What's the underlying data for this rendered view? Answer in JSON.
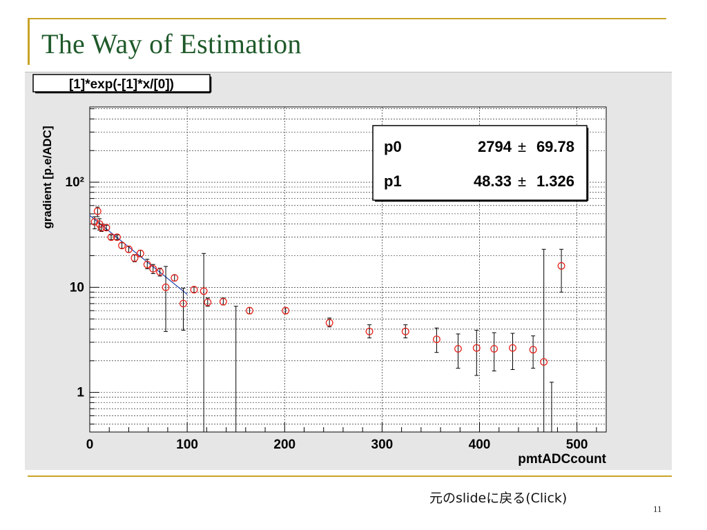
{
  "slide": {
    "title": "The Way of Estimation",
    "back_link": "元のslideに戻る(Click)",
    "page_number": "11"
  },
  "colors": {
    "accent": "#c9a227",
    "title": "#1f5a2a",
    "marker": "#e8231c",
    "fit_line": "#1f3fb0",
    "canvas": "#e6e6e6"
  },
  "chart_data": {
    "type": "scatter",
    "title": "[1]*exp(-[1]*x/[0])",
    "xlabel": "pmtADCcount",
    "ylabel": "gradient [p.e/ADC]",
    "xlim": [
      0,
      530
    ],
    "ylim": [
      0.42,
      520
    ],
    "y_scale": "log",
    "grid": true,
    "x_ticks": [
      {
        "value": 0,
        "label": "0"
      },
      {
        "value": 100,
        "label": "100"
      },
      {
        "value": 200,
        "label": "200"
      },
      {
        "value": 300,
        "label": "300"
      },
      {
        "value": 400,
        "label": "400"
      },
      {
        "value": 500,
        "label": "500"
      }
    ],
    "y_ticks": [
      {
        "value": 1,
        "label": "1"
      },
      {
        "value": 10,
        "label": "10"
      },
      {
        "value": 100,
        "label": "10²"
      }
    ],
    "fit": {
      "function": "[1]*exp(-[1]*x/[0])",
      "params": [
        {
          "name": "p0",
          "value": "2794",
          "error": "69.78"
        },
        {
          "name": "p1",
          "value": "48.33",
          "error": "1.326"
        }
      ],
      "p0": 2794,
      "p1": 48.33
    },
    "series": [
      {
        "points": [
          {
            "x": 5,
            "y": 42,
            "lo": 36,
            "hi": 47
          },
          {
            "x": 8,
            "y": 53,
            "lo": 47,
            "hi": 58
          },
          {
            "x": 10,
            "y": 40,
            "lo": 35,
            "hi": 45
          },
          {
            "x": 12,
            "y": 37,
            "lo": 34,
            "hi": 40
          },
          {
            "x": 17,
            "y": 37,
            "lo": 35,
            "hi": 39
          },
          {
            "x": 22,
            "y": 30,
            "lo": 28.5,
            "hi": 31.5
          },
          {
            "x": 28,
            "y": 30,
            "lo": 28.5,
            "hi": 31.5
          },
          {
            "x": 33,
            "y": 25,
            "lo": 23.5,
            "hi": 26.5
          },
          {
            "x": 40,
            "y": 23,
            "lo": 21.5,
            "hi": 24.5
          },
          {
            "x": 46,
            "y": 19,
            "lo": 17.5,
            "hi": 20.5
          },
          {
            "x": 52,
            "y": 21,
            "lo": 19.5,
            "hi": 22.5
          },
          {
            "x": 59,
            "y": 16.5,
            "lo": 15,
            "hi": 18.5
          },
          {
            "x": 65,
            "y": 15,
            "lo": 13.5,
            "hi": 16.5
          },
          {
            "x": 72,
            "y": 14,
            "lo": 12.8,
            "hi": 15.2
          },
          {
            "x": 78,
            "y": 10,
            "lo": 3.8,
            "hi": 15.8
          },
          {
            "x": 87,
            "y": 12.3,
            "lo": 11.5,
            "hi": 13.1
          },
          {
            "x": 96,
            "y": 7,
            "lo": 3.9,
            "hi": 9.8
          },
          {
            "x": 107,
            "y": 9.5,
            "lo": 8.9,
            "hi": 10.1
          },
          {
            "x": 117,
            "y": 9.2,
            "lo": 0.42,
            "hi": 21
          },
          {
            "x": 121,
            "y": 7.2,
            "lo": 6.6,
            "hi": 7.9
          },
          {
            "x": 137,
            "y": 7.3,
            "lo": 6.8,
            "hi": 7.9
          },
          {
            "x": 150,
            "y": null,
            "lo": 0.42,
            "hi": 6.6
          },
          {
            "x": 164,
            "y": 6,
            "lo": 5.6,
            "hi": 6.4
          },
          {
            "x": 201,
            "y": 6,
            "lo": 5.6,
            "hi": 6.4
          },
          {
            "x": 246,
            "y": 4.6,
            "lo": 4.2,
            "hi": 5.1
          },
          {
            "x": 287,
            "y": 3.8,
            "lo": 3.3,
            "hi": 4.4
          },
          {
            "x": 324,
            "y": 3.8,
            "lo": 3.3,
            "hi": 4.4
          },
          {
            "x": 356,
            "y": 3.2,
            "lo": 2.4,
            "hi": 4.1
          },
          {
            "x": 378,
            "y": 2.6,
            "lo": 1.7,
            "hi": 3.6
          },
          {
            "x": 397,
            "y": 2.65,
            "lo": 1.45,
            "hi": 3.9
          },
          {
            "x": 415,
            "y": 2.6,
            "lo": 1.6,
            "hi": 3.7
          },
          {
            "x": 434,
            "y": 2.65,
            "lo": 1.65,
            "hi": 3.65
          },
          {
            "x": 455,
            "y": 2.55,
            "lo": 1.7,
            "hi": 3.45
          },
          {
            "x": 466,
            "y": 1.95,
            "lo": 0.42,
            "hi": 23
          },
          {
            "x": 474,
            "y": null,
            "lo": 0.42,
            "hi": 1.25
          },
          {
            "x": 484,
            "y": 16,
            "lo": 9,
            "hi": 23
          }
        ]
      }
    ]
  }
}
